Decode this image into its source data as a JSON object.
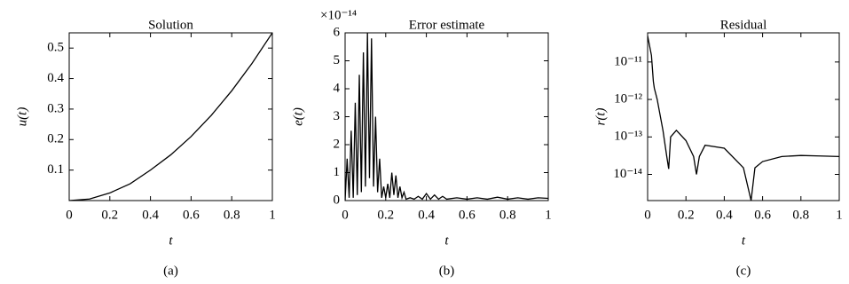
{
  "chart_data": [
    {
      "type": "line",
      "title": "Solution",
      "xlabel": "t",
      "ylabel": "u(t)",
      "caption": "(a)",
      "color": "#000000",
      "x": [
        0,
        0.1,
        0.2,
        0.3,
        0.4,
        0.5,
        0.6,
        0.7,
        0.8,
        0.9,
        1
      ],
      "values": [
        0,
        0.005,
        0.025,
        0.055,
        0.1,
        0.15,
        0.21,
        0.28,
        0.36,
        0.45,
        0.55
      ],
      "xlim": [
        0,
        1
      ],
      "xticks": [
        0,
        0.2,
        0.4,
        0.6,
        0.8,
        1
      ],
      "ylim": [
        0,
        0.55
      ],
      "yticks": [
        0.1,
        0.2,
        0.3,
        0.4,
        0.5
      ]
    },
    {
      "type": "line",
      "title": "Error estimate",
      "xlabel": "t",
      "ylabel": "e(t)",
      "caption": "(b)",
      "color": "#000000",
      "annotation": "×10⁻¹⁴",
      "x": [
        0,
        0.01,
        0.02,
        0.03,
        0.04,
        0.05,
        0.06,
        0.07,
        0.08,
        0.09,
        0.1,
        0.11,
        0.12,
        0.13,
        0.14,
        0.15,
        0.16,
        0.17,
        0.18,
        0.19,
        0.2,
        0.21,
        0.22,
        0.23,
        0.24,
        0.25,
        0.26,
        0.27,
        0.28,
        0.29,
        0.3,
        0.32,
        0.34,
        0.36,
        0.38,
        0.4,
        0.42,
        0.44,
        0.46,
        0.48,
        0.5,
        0.55,
        0.6,
        0.65,
        0.7,
        0.75,
        0.8,
        0.85,
        0.9,
        0.95,
        1
      ],
      "values": [
        0,
        1.5,
        0.1,
        2.5,
        0.1,
        3.5,
        0.2,
        4.5,
        0.3,
        5.3,
        0.5,
        6,
        0.8,
        5.8,
        0.5,
        3,
        0.3,
        1.5,
        0.1,
        0.5,
        0.1,
        0.6,
        0.1,
        1.0,
        0.2,
        0.9,
        0.1,
        0.5,
        0.1,
        0.3,
        0.05,
        0.1,
        0.05,
        0.15,
        0.05,
        0.25,
        0.05,
        0.2,
        0.05,
        0.15,
        0.05,
        0.1,
        0.05,
        0.1,
        0.05,
        0.12,
        0.05,
        0.1,
        0.05,
        0.1,
        0.08
      ],
      "xlim": [
        0,
        1
      ],
      "xticks": [
        0,
        0.2,
        0.4,
        0.6,
        0.8,
        1
      ],
      "ylim": [
        0,
        6
      ],
      "yticks": [
        0,
        1,
        2,
        3,
        4,
        5,
        6
      ]
    },
    {
      "type": "line",
      "title": "Residual",
      "xlabel": "t",
      "ylabel": "r(t)",
      "caption": "(c)",
      "color": "#000000",
      "yscale": "log",
      "x": [
        0,
        0.02,
        0.03,
        0.035,
        0.05,
        0.08,
        0.1,
        0.11,
        0.12,
        0.15,
        0.2,
        0.24,
        0.255,
        0.27,
        0.3,
        0.4,
        0.5,
        0.54,
        0.56,
        0.6,
        0.7,
        0.8,
        0.9,
        1
      ],
      "values": [
        5e-11,
        1.5e-11,
        3e-12,
        2e-12,
        1e-12,
        1.5e-13,
        3e-14,
        1.4e-14,
        1e-13,
        1.5e-13,
        8e-14,
        3e-14,
        1e-14,
        3e-14,
        6e-14,
        5e-14,
        1.5e-14,
        2e-15,
        1.5e-14,
        2.2e-14,
        3e-14,
        3.2e-14,
        3.1e-14,
        3e-14
      ],
      "xlim": [
        0,
        1
      ],
      "xticks": [
        0,
        0.2,
        0.4,
        0.6,
        0.8,
        1
      ],
      "ylim": [
        2e-15,
        6e-11
      ],
      "yticks": [
        {
          "value": 1e-14,
          "label": "10⁻¹⁴"
        },
        {
          "value": 1e-13,
          "label": "10⁻¹³"
        },
        {
          "value": 1e-12,
          "label": "10⁻¹²"
        },
        {
          "value": 1e-11,
          "label": "10⁻¹¹"
        }
      ]
    }
  ]
}
